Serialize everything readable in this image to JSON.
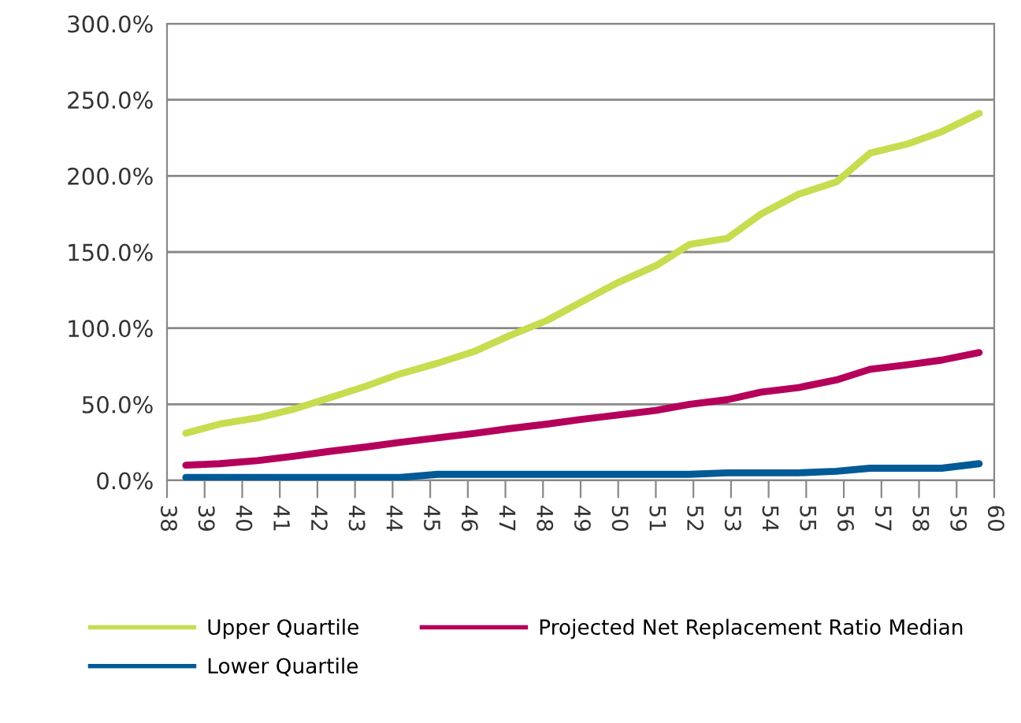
{
  "chart_data": {
    "type": "line",
    "x": [
      38.5,
      39.4,
      40.4,
      41.4,
      42.3,
      43.3,
      44.2,
      45.2,
      46.2,
      47.1,
      48.1,
      49.0,
      50.0,
      51.0,
      51.9,
      52.9,
      53.8,
      54.8,
      55.8,
      56.7,
      57.7,
      58.6,
      59.6
    ],
    "series": [
      {
        "name": "Upper Quartile",
        "color": "#c8dc50",
        "values": [
          31,
          37,
          41,
          47,
          54,
          62,
          70,
          77,
          85,
          95,
          105,
          117,
          130,
          141,
          155,
          159,
          175,
          188,
          196,
          215,
          221,
          229,
          241
        ]
      },
      {
        "name": "Projected Net Replacement Ratio Median",
        "color": "#b5005b",
        "values": [
          10,
          11,
          13,
          16,
          19,
          22,
          25,
          28,
          31,
          34,
          37,
          40,
          43,
          46,
          50,
          53,
          58,
          61,
          66,
          73,
          76,
          79,
          84
        ]
      },
      {
        "name": "Lower Quartile",
        "color": "#005a96",
        "values": [
          2,
          2,
          2,
          2,
          2,
          2,
          2,
          4,
          4,
          4,
          4,
          4,
          4,
          4,
          4,
          5,
          5,
          5,
          6,
          8,
          8,
          8,
          11
        ]
      }
    ],
    "xlim": [
      38,
      60
    ],
    "xticks": [
      38,
      39,
      40,
      41,
      42,
      43,
      44,
      45,
      46,
      47,
      48,
      49,
      50,
      51,
      52,
      53,
      54,
      55,
      56,
      57,
      58,
      59,
      60
    ],
    "ylim": [
      0,
      300
    ],
    "yticks": [
      {
        "value": 0,
        "label": "0.0%"
      },
      {
        "value": 50,
        "label": "50.0%"
      },
      {
        "value": 100,
        "label": "100.0%"
      },
      {
        "value": 150,
        "label": "150.0%"
      },
      {
        "value": 200,
        "label": "200.0%"
      },
      {
        "value": 250,
        "label": "250.0%"
      },
      {
        "value": 300,
        "label": "300.0%"
      }
    ],
    "grid": "y",
    "legend": "bottom",
    "marker": "none",
    "line_style": "solid"
  }
}
